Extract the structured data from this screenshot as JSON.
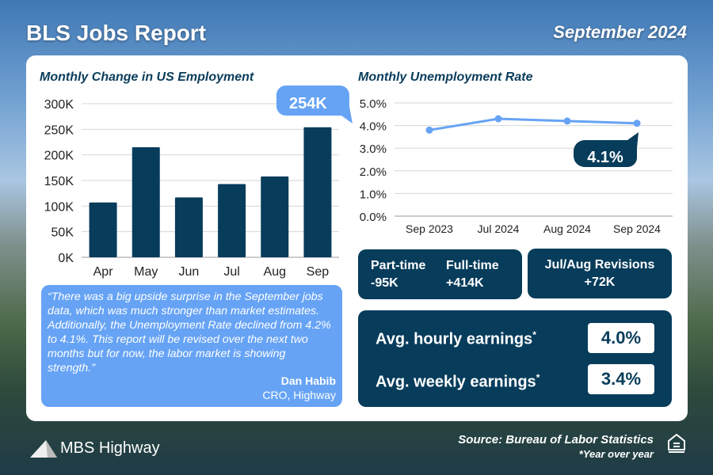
{
  "header": {
    "title": "BLS Jobs Report",
    "date": "September 2024"
  },
  "employment_chart_title": "Monthly Change in US Employment",
  "unemployment_chart_title": "Monthly Unemployment Rate",
  "chart_data": [
    {
      "type": "bar",
      "title": "Monthly Change in US Employment",
      "categories": [
        "Apr",
        "May",
        "Jun",
        "Jul",
        "Aug",
        "Sep"
      ],
      "values": [
        107,
        215,
        117,
        143,
        158,
        254
      ],
      "unit": "K",
      "yticks": [
        "0K",
        "50K",
        "100K",
        "150K",
        "200K",
        "250K",
        "300K"
      ],
      "ylim": [
        0,
        300
      ],
      "grid": true,
      "callout": "254K",
      "color": "#073c5b",
      "callout_color": "#66a3f5"
    },
    {
      "type": "line",
      "title": "Monthly Unemployment Rate",
      "categories": [
        "Sep 2023",
        "Jul 2024",
        "Aug 2024",
        "Sep 2024"
      ],
      "values": [
        3.8,
        4.3,
        4.2,
        4.1
      ],
      "yticks": [
        "0.0%",
        "1.0%",
        "2.0%",
        "3.0%",
        "4.0%",
        "5.0%"
      ],
      "ylim": [
        0,
        5
      ],
      "grid": true,
      "callout": "4.1%",
      "color": "#66a3f5",
      "callout_color": "#073c5b"
    }
  ],
  "stats": {
    "part_time_label": "Part-time",
    "part_time_value": "-95K",
    "full_time_label": "Full-time",
    "full_time_value": "+414K",
    "revisions_label": "Jul/Aug Revisions",
    "revisions_value": "+72K"
  },
  "earnings": {
    "hourly_label": "Avg. hourly earnings",
    "hourly_value": "4.0%",
    "weekly_label": "Avg. weekly earnings",
    "weekly_value": "3.4%",
    "marker": "*"
  },
  "quote": {
    "text": "“There was a big upside surprise in the September jobs data, which was much stronger than market estimates. Additionally, the Unemployment Rate declined from 4.2% to 4.1%. This report will be revised over the next two months but for now, the labor market is showing strength.”",
    "name": "Dan Habib",
    "role": "CRO, Highway"
  },
  "footer": {
    "logo": "MBS Highway",
    "source": "Source: Bureau of Labor Statistics",
    "note": "*Year over year"
  }
}
